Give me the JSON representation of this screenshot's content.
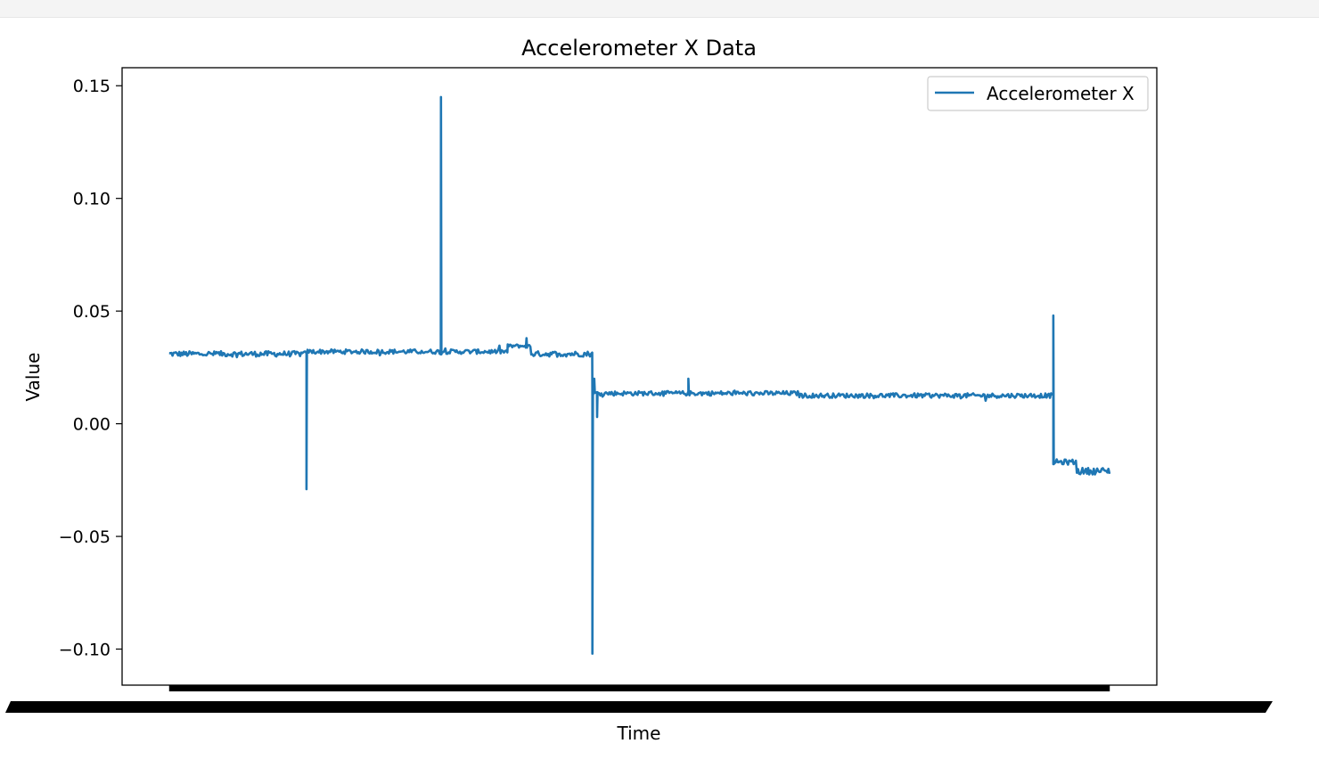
{
  "chart_data": {
    "type": "line",
    "title": "Accelerometer X Data",
    "xlabel": "Time",
    "ylabel": "Value",
    "ylim": [
      -0.116,
      0.158
    ],
    "yticks": [
      -0.1,
      -0.05,
      0.0,
      0.05,
      0.1,
      0.15
    ],
    "ytick_labels": [
      "−0.10",
      "−0.05",
      "0.00",
      "0.05",
      "0.10",
      "0.15"
    ],
    "xlim": [
      -0.05,
      1.05
    ],
    "x_tick_labels_note": "x tick labels are densely overlapping and unreadable",
    "legend_position": "upper right",
    "grid": false,
    "series": [
      {
        "name": "Accelerometer X",
        "color": "#1f77b4",
        "segments": [
          {
            "x_start": 0.0,
            "x_end": 0.146,
            "base": 0.031,
            "noise": 0.0012
          },
          {
            "x_start": 0.146,
            "x_end": 0.36,
            "base": 0.032,
            "noise": 0.001
          },
          {
            "x_start": 0.36,
            "x_end": 0.385,
            "base": 0.0345,
            "noise": 0.0008
          },
          {
            "x_start": 0.385,
            "x_end": 0.45,
            "base": 0.031,
            "noise": 0.0012
          },
          {
            "x_start": 0.45,
            "x_end": 0.67,
            "base": 0.0135,
            "noise": 0.001
          },
          {
            "x_start": 0.67,
            "x_end": 0.94,
            "base": 0.0125,
            "noise": 0.001
          },
          {
            "x_start": 0.94,
            "x_end": 0.965,
            "base": -0.017,
            "noise": 0.0012
          },
          {
            "x_start": 0.965,
            "x_end": 1.0,
            "base": -0.021,
            "noise": 0.0015
          }
        ],
        "spikes": [
          {
            "x": 0.146,
            "y": -0.029
          },
          {
            "x": 0.289,
            "y": 0.145
          },
          {
            "x": 0.45,
            "y": -0.102
          },
          {
            "x": 0.452,
            "y": 0.02
          },
          {
            "x": 0.455,
            "y": 0.003
          },
          {
            "x": 0.552,
            "y": 0.02
          },
          {
            "x": 0.38,
            "y": 0.038
          },
          {
            "x": 0.94,
            "y": 0.048
          }
        ]
      }
    ]
  }
}
